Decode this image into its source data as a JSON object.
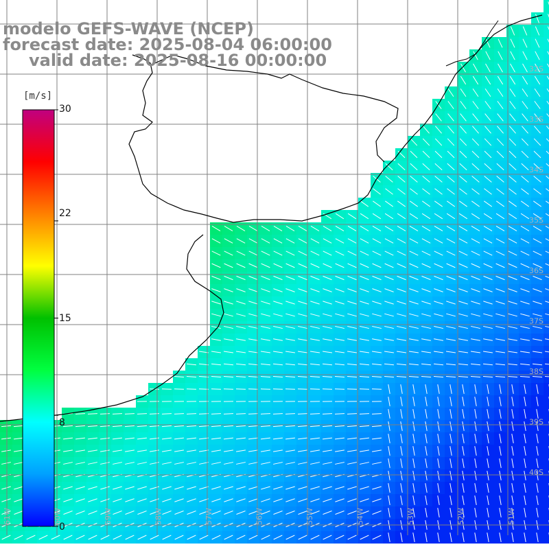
{
  "title": {
    "line1": "modelo GEFS-WAVE (NCEP)",
    "line2": "forecast date: 2025-08-04 06:00:00",
    "line3": "valid date: 2025-08-16 00:00:00"
  },
  "colorbar": {
    "unit": "[m/s]",
    "ticks": [
      "30",
      "22",
      "15",
      "8",
      "0"
    ],
    "tick_values": [
      30,
      22,
      15,
      8,
      0
    ],
    "colors": [
      "#0000ff",
      "#00a0ff",
      "#00ffff",
      "#00ff40",
      "#00c000",
      "#ffff00",
      "#ff8000",
      "#ff0000",
      "#c00080"
    ]
  },
  "map": {
    "lat_labels": [
      "32S",
      "33S",
      "34S",
      "35S",
      "36S",
      "37S",
      "38S",
      "39S",
      "40S"
    ],
    "lon_labels": [
      "61W",
      "60W",
      "59W",
      "58W",
      "57W",
      "56W",
      "55W",
      "54W",
      "53W",
      "52W",
      "51W"
    ],
    "land_color": "#ffffff",
    "grid_color": "#808080",
    "coast_color": "#000000"
  }
}
